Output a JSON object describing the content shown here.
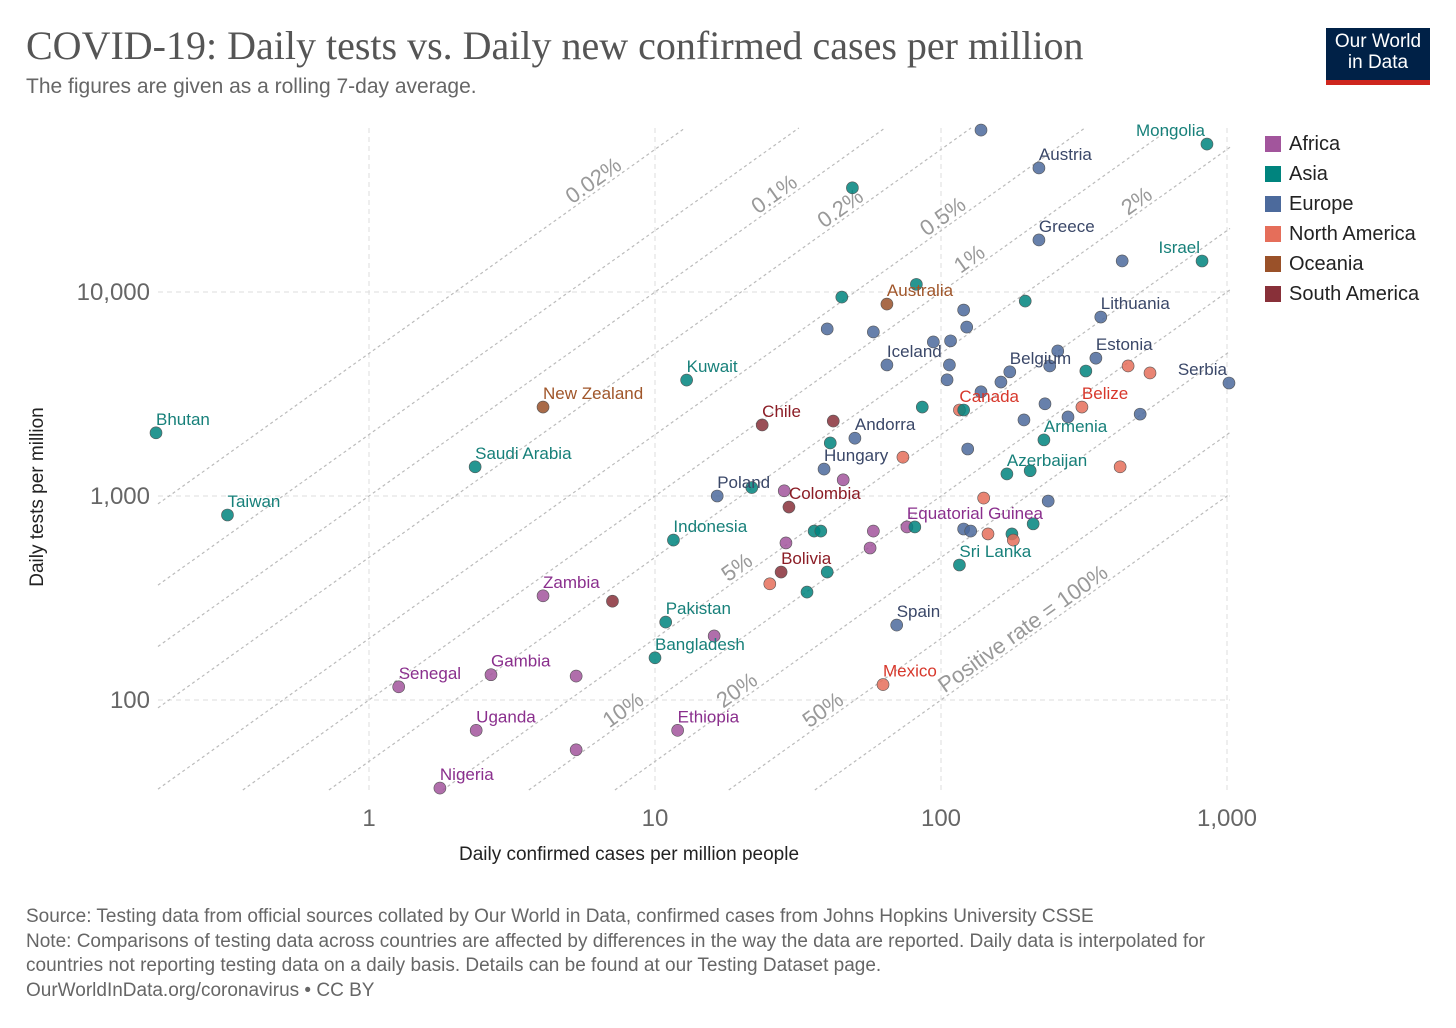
{
  "title": "COVID-19: Daily tests vs. Daily new confirmed cases per million",
  "subtitle": "The figures are given as a rolling 7-day average.",
  "logo": {
    "line1": "Our World",
    "line2": "in Data"
  },
  "footer": {
    "source": "Source: Testing data from official sources collated by Our World in Data, confirmed cases from Johns Hopkins University CSSE",
    "note1": "Note: Comparisons of testing data across countries are affected by differences in the way the data are reported. Daily data is interpolated for",
    "note2": "countries not reporting testing data on a daily basis. Details can be found at our Testing Dataset page.",
    "credit": "OurWorldInData.org/coronavirus • CC BY"
  },
  "chart_data": {
    "type": "scatter",
    "title": "COVID-19: Daily tests vs. Daily new confirmed cases per million",
    "xlabel": "Daily confirmed cases per million people",
    "ylabel": "Daily tests per million",
    "xscale": "log",
    "yscale": "log",
    "xlim": [
      0.18,
      1050
    ],
    "ylim": [
      36,
      62000
    ],
    "xticks": [
      {
        "v": 1,
        "label": "1"
      },
      {
        "v": 10,
        "label": "10"
      },
      {
        "v": 100,
        "label": "100"
      },
      {
        "v": 1000,
        "label": "1,000"
      }
    ],
    "yticks": [
      {
        "v": 100,
        "label": "100"
      },
      {
        "v": 1000,
        "label": "1,000"
      },
      {
        "v": 10000,
        "label": "10,000"
      }
    ],
    "grid": true,
    "legend_position": "right",
    "legend": [
      {
        "name": "Africa",
        "color": "#a2559c"
      },
      {
        "name": "Asia",
        "color": "#00847e"
      },
      {
        "name": "Europe",
        "color": "#4c6a9c"
      },
      {
        "name": "North America",
        "color": "#e56e5a"
      },
      {
        "name": "Oceania",
        "color": "#9a5129"
      },
      {
        "name": "South America",
        "color": "#883039"
      }
    ],
    "label_colors": {
      "Africa": "#8a2f8d",
      "Asia": "#17807a",
      "Europe": "#3a4768",
      "North America": "#d7372b",
      "Oceania": "#a0562a",
      "South America": "#8b1c25"
    },
    "positive_rate_lines": [
      {
        "rate": 0.02,
        "label": "0.02%"
      },
      {
        "rate": 0.05,
        "label": ""
      },
      {
        "rate": 0.1,
        "label": "0.1%"
      },
      {
        "rate": 0.2,
        "label": "0.2%"
      },
      {
        "rate": 0.5,
        "label": "0.5%"
      },
      {
        "rate": 1,
        "label": "1%"
      },
      {
        "rate": 2,
        "label": "2%"
      },
      {
        "rate": 5,
        "label": "5%"
      },
      {
        "rate": 10,
        "label": "10%"
      },
      {
        "rate": 20,
        "label": "20%"
      },
      {
        "rate": 50,
        "label": "50%"
      },
      {
        "rate": 100,
        "label": "Positive rate = 100%"
      }
    ],
    "points": [
      {
        "name": "Bhutan",
        "continent": "Asia",
        "x": 0.18,
        "y": 2040
      },
      {
        "name": "Taiwan",
        "continent": "Asia",
        "x": 0.32,
        "y": 807
      },
      {
        "name": "Saudi Arabia",
        "continent": "Asia",
        "x": 2.35,
        "y": 1390
      },
      {
        "name": "New Zealand",
        "continent": "Oceania",
        "x": 4.06,
        "y": 2730
      },
      {
        "name": "Kuwait",
        "continent": "Asia",
        "x": 12.9,
        "y": 3700
      },
      {
        "name": "Chile",
        "continent": "South America",
        "x": 23.7,
        "y": 2230
      },
      {
        "name": "Andorra",
        "continent": "Europe",
        "x": 50,
        "y": 1920
      },
      {
        "name": "Hungary",
        "continent": "Europe",
        "x": 39,
        "y": 1355
      },
      {
        "name": "Poland",
        "continent": "Europe",
        "x": 16.5,
        "y": 1000
      },
      {
        "name": "Colombia",
        "continent": "South America",
        "x": 29.4,
        "y": 883
      },
      {
        "name": "Indonesia",
        "continent": "Asia",
        "x": 11.6,
        "y": 608
      },
      {
        "name": "Bolivia",
        "continent": "South America",
        "x": 27.6,
        "y": 424
      },
      {
        "name": "Zambia",
        "continent": "Africa",
        "x": 4.06,
        "y": 324
      },
      {
        "name": "Pakistan",
        "continent": "Asia",
        "x": 10.9,
        "y": 241
      },
      {
        "name": "Bangladesh",
        "continent": "Asia",
        "x": 10,
        "y": 161
      },
      {
        "name": "Senegal",
        "continent": "Africa",
        "x": 1.27,
        "y": 116
      },
      {
        "name": "Gambia",
        "continent": "Africa",
        "x": 2.67,
        "y": 133
      },
      {
        "name": "Uganda",
        "continent": "Africa",
        "x": 2.37,
        "y": 71
      },
      {
        "name": "Nigeria",
        "continent": "Africa",
        "x": 1.77,
        "y": 37
      },
      {
        "name": "Ethiopia",
        "continent": "Africa",
        "x": 12,
        "y": 71
      },
      {
        "name": "Spain",
        "continent": "Europe",
        "x": 70,
        "y": 233
      },
      {
        "name": "Mexico",
        "continent": "North America",
        "x": 62.7,
        "y": 119
      },
      {
        "name": "Sri Lanka",
        "continent": "Asia",
        "x": 116,
        "y": 459
      },
      {
        "name": "Equatorial Guinea",
        "continent": "Africa",
        "x": 76,
        "y": 705
      },
      {
        "name": "Azerbaijan",
        "continent": "Asia",
        "x": 170,
        "y": 1283
      },
      {
        "name": "Armenia",
        "continent": "Asia",
        "x": 229,
        "y": 1884
      },
      {
        "name": "Canada",
        "continent": "North America",
        "x": 116,
        "y": 2640
      },
      {
        "name": "Belize",
        "continent": "North America",
        "x": 311,
        "y": 2730
      },
      {
        "name": "Serbia",
        "continent": "Europe",
        "x": 1016,
        "y": 3580
      },
      {
        "name": "Estonia",
        "continent": "Europe",
        "x": 348,
        "y": 4740
      },
      {
        "name": "Belgium",
        "continent": "Europe",
        "x": 174,
        "y": 4060
      },
      {
        "name": "Iceland",
        "continent": "Europe",
        "x": 64.7,
        "y": 4390
      },
      {
        "name": "Lithuania",
        "continent": "Europe",
        "x": 362,
        "y": 7540
      },
      {
        "name": "Australia",
        "continent": "Oceania",
        "x": 64.7,
        "y": 8730
      },
      {
        "name": "Israel",
        "continent": "Asia",
        "x": 818,
        "y": 14190
      },
      {
        "name": "Greece",
        "continent": "Europe",
        "x": 220,
        "y": 17990
      },
      {
        "name": "Austria",
        "continent": "Europe",
        "x": 220,
        "y": 40550
      },
      {
        "name": "Mongolia",
        "continent": "Asia",
        "x": 851,
        "y": 53100
      },
      {
        "name": "",
        "continent": "Europe",
        "x": 138,
        "y": 62200
      },
      {
        "name": "",
        "continent": "Europe",
        "x": 430,
        "y": 14200
      },
      {
        "name": "",
        "continent": "Europe",
        "x": 120,
        "y": 8160
      },
      {
        "name": "",
        "continent": "Europe",
        "x": 123,
        "y": 6730
      },
      {
        "name": "",
        "continent": "Europe",
        "x": 108,
        "y": 5760
      },
      {
        "name": "",
        "continent": "Europe",
        "x": 94,
        "y": 5690
      },
      {
        "name": "",
        "continent": "Europe",
        "x": 40,
        "y": 6590
      },
      {
        "name": "",
        "continent": "Europe",
        "x": 58,
        "y": 6370
      },
      {
        "name": "",
        "continent": "Europe",
        "x": 107,
        "y": 4390
      },
      {
        "name": "",
        "continent": "Europe",
        "x": 105,
        "y": 3710
      },
      {
        "name": "",
        "continent": "Europe",
        "x": 162,
        "y": 3620
      },
      {
        "name": "",
        "continent": "Europe",
        "x": 256,
        "y": 5140
      },
      {
        "name": "",
        "continent": "Europe",
        "x": 240,
        "y": 4340
      },
      {
        "name": "",
        "continent": "Europe",
        "x": 138,
        "y": 3240
      },
      {
        "name": "",
        "continent": "Europe",
        "x": 195,
        "y": 2360
      },
      {
        "name": "",
        "continent": "Europe",
        "x": 231,
        "y": 2830
      },
      {
        "name": "",
        "continent": "Europe",
        "x": 497,
        "y": 2520
      },
      {
        "name": "",
        "continent": "Europe",
        "x": 278,
        "y": 2440
      },
      {
        "name": "",
        "continent": "Europe",
        "x": 124,
        "y": 1700
      },
      {
        "name": "",
        "continent": "Europe",
        "x": 237,
        "y": 944
      },
      {
        "name": "",
        "continent": "Europe",
        "x": 120,
        "y": 689
      },
      {
        "name": "",
        "continent": "Europe",
        "x": 127,
        "y": 673
      },
      {
        "name": "",
        "continent": "Asia",
        "x": 49,
        "y": 32400
      },
      {
        "name": "",
        "continent": "Asia",
        "x": 45,
        "y": 9440
      },
      {
        "name": "",
        "continent": "Asia",
        "x": 82,
        "y": 10900
      },
      {
        "name": "",
        "continent": "Asia",
        "x": 197,
        "y": 9030
      },
      {
        "name": "",
        "continent": "Asia",
        "x": 86,
        "y": 2730
      },
      {
        "name": "",
        "continent": "Asia",
        "x": 41,
        "y": 1820
      },
      {
        "name": "",
        "continent": "Asia",
        "x": 120,
        "y": 2640
      },
      {
        "name": "",
        "continent": "Asia",
        "x": 321,
        "y": 4100
      },
      {
        "name": "",
        "continent": "Asia",
        "x": 205,
        "y": 1330
      },
      {
        "name": "",
        "continent": "Asia",
        "x": 210,
        "y": 730
      },
      {
        "name": "",
        "continent": "Asia",
        "x": 177,
        "y": 652
      },
      {
        "name": "",
        "continent": "Asia",
        "x": 36,
        "y": 673
      },
      {
        "name": "",
        "continent": "Asia",
        "x": 38,
        "y": 673
      },
      {
        "name": "",
        "continent": "Asia",
        "x": 81,
        "y": 705
      },
      {
        "name": "",
        "continent": "Asia",
        "x": 40,
        "y": 424
      },
      {
        "name": "",
        "continent": "Asia",
        "x": 34,
        "y": 338
      },
      {
        "name": "",
        "continent": "Asia",
        "x": 21.8,
        "y": 1100
      },
      {
        "name": "",
        "continent": "Africa",
        "x": 28.3,
        "y": 1060
      },
      {
        "name": "",
        "continent": "Africa",
        "x": 45.5,
        "y": 1200
      },
      {
        "name": "",
        "continent": "Africa",
        "x": 28.7,
        "y": 589
      },
      {
        "name": "",
        "continent": "Africa",
        "x": 58,
        "y": 673
      },
      {
        "name": "",
        "continent": "Africa",
        "x": 56.5,
        "y": 556
      },
      {
        "name": "",
        "continent": "Africa",
        "x": 5.3,
        "y": 131
      },
      {
        "name": "",
        "continent": "Africa",
        "x": 5.3,
        "y": 57
      },
      {
        "name": "",
        "continent": "Africa",
        "x": 16.1,
        "y": 206
      },
      {
        "name": "",
        "continent": "North America",
        "x": 73.6,
        "y": 1550
      },
      {
        "name": "",
        "continent": "North America",
        "x": 141,
        "y": 977
      },
      {
        "name": "",
        "continent": "North America",
        "x": 146,
        "y": 652
      },
      {
        "name": "",
        "continent": "North America",
        "x": 179,
        "y": 608
      },
      {
        "name": "",
        "continent": "North America",
        "x": 451,
        "y": 4340
      },
      {
        "name": "",
        "continent": "North America",
        "x": 538,
        "y": 4010
      },
      {
        "name": "",
        "continent": "North America",
        "x": 423,
        "y": 1390
      },
      {
        "name": "",
        "continent": "North America",
        "x": 25.2,
        "y": 371
      },
      {
        "name": "",
        "continent": "South America",
        "x": 42,
        "y": 2330
      },
      {
        "name": "",
        "continent": "South America",
        "x": 7.1,
        "y": 305
      }
    ]
  }
}
